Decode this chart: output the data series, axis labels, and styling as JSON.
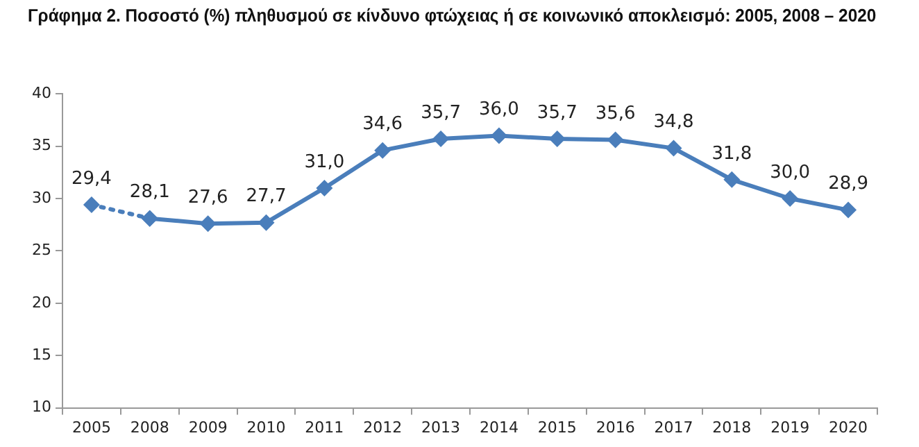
{
  "chart_data": {
    "type": "line",
    "title": "Γράφημα 2. Ποσοστό (%) πληθυσμού σε κίνδυνο φτώχειας ή σε κοινωνικό αποκλεισμό: 2005, 2008 – 2020",
    "categories": [
      "2005",
      "2008",
      "2009",
      "2010",
      "2011",
      "2012",
      "2013",
      "2014",
      "2015",
      "2016",
      "2017",
      "2018",
      "2019",
      "2020"
    ],
    "series": [
      {
        "color": "#4a7ebb",
        "line_style": "dotted",
        "values": [
          29.4,
          28.1,
          null,
          null,
          null,
          null,
          null,
          null,
          null,
          null,
          null,
          null,
          null,
          null
        ],
        "value_labels": [
          "29,4",
          null,
          null,
          null,
          null,
          null,
          null,
          null,
          null,
          null,
          null,
          null,
          null,
          null
        ]
      },
      {
        "color": "#4a7ebb",
        "line_style": "solid",
        "values": [
          null,
          28.1,
          27.6,
          27.7,
          31.0,
          34.6,
          35.7,
          36.0,
          35.7,
          35.6,
          34.8,
          31.8,
          30.0,
          28.9
        ],
        "value_labels": [
          null,
          "28,1",
          "27,6",
          "27,7",
          "31,0",
          "34,6",
          "35,7",
          "36,0",
          "35,7",
          "35,6",
          "34,8",
          "31,8",
          "30,0",
          "28,9"
        ]
      }
    ],
    "ylim": [
      10,
      40
    ],
    "yticks": [
      10,
      15,
      20,
      25,
      30,
      35,
      40
    ],
    "grid": false,
    "legend": false,
    "marker": "diamond"
  }
}
